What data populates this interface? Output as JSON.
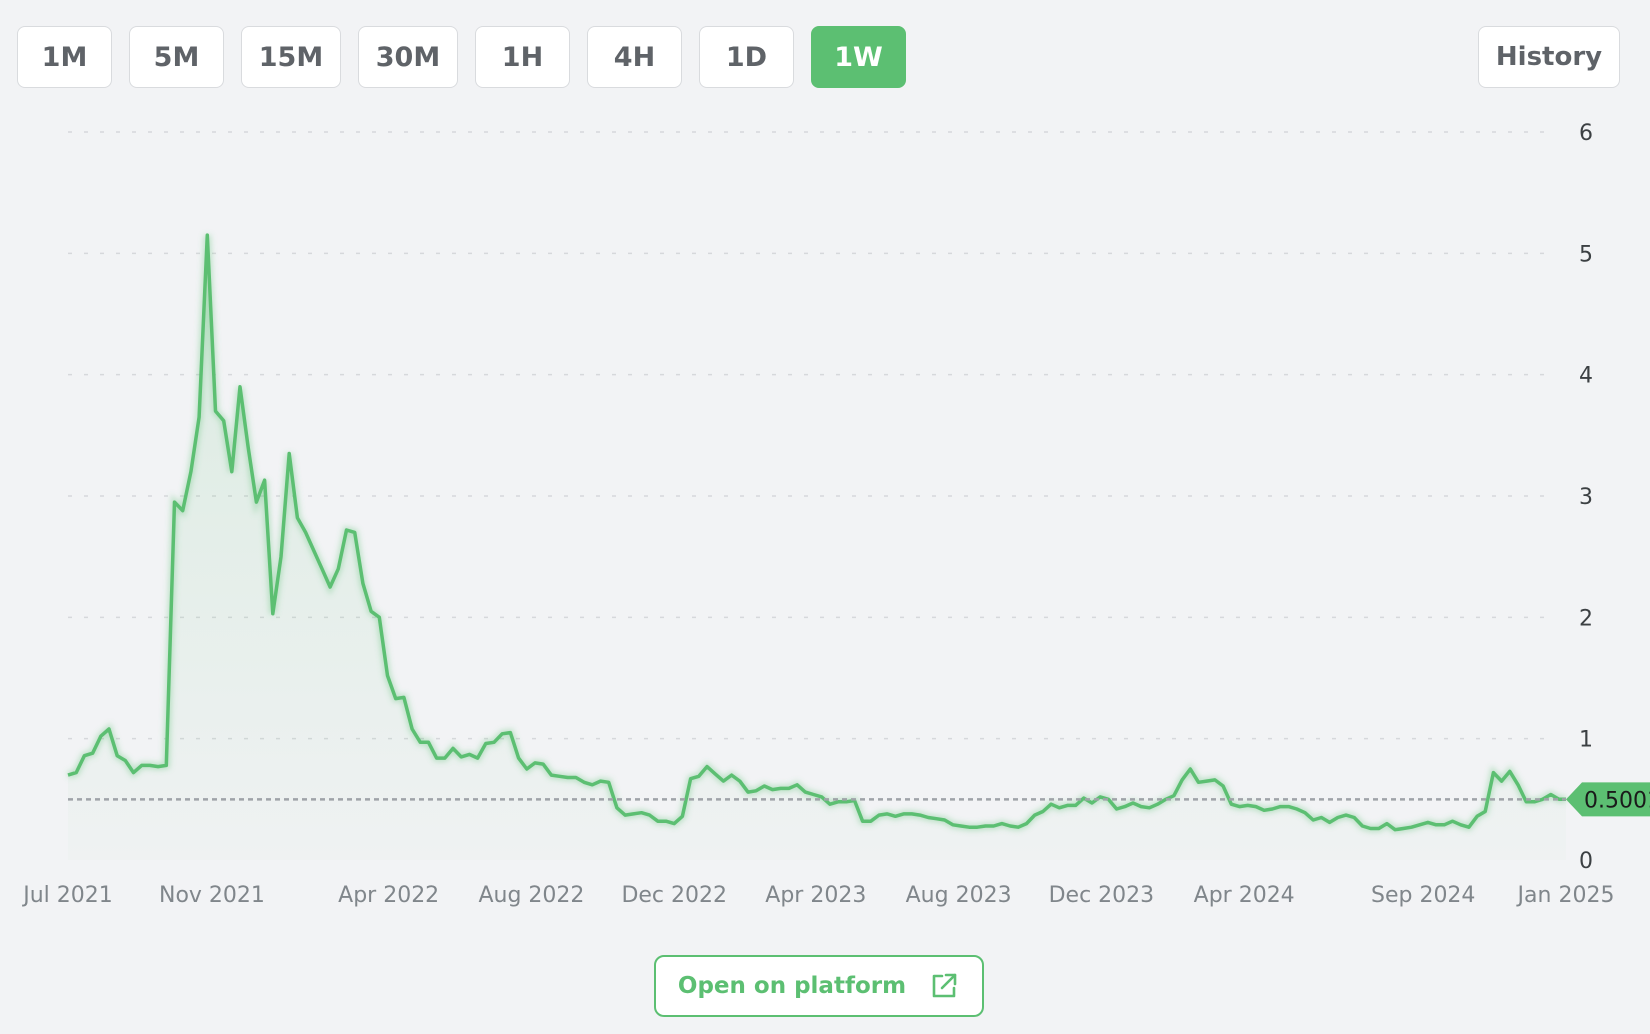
{
  "timeframes": {
    "items": [
      {
        "label": "1M",
        "active": false
      },
      {
        "label": "5M",
        "active": false
      },
      {
        "label": "15M",
        "active": false
      },
      {
        "label": "30M",
        "active": false
      },
      {
        "label": "1H",
        "active": false
      },
      {
        "label": "4H",
        "active": false
      },
      {
        "label": "1D",
        "active": false
      },
      {
        "label": "1W",
        "active": true
      }
    ]
  },
  "history_label": "History",
  "open_label": "Open on platform",
  "icons": {
    "open": "external-link-icon"
  },
  "colors": {
    "accent": "#5cbf72",
    "line": "#5cbf72"
  },
  "chart_data": {
    "type": "area",
    "title": "",
    "xlabel": "",
    "ylabel": "",
    "y_ticks": [
      0,
      1,
      2,
      3,
      4,
      5,
      6
    ],
    "ylim": [
      0,
      6
    ],
    "x_ticks": [
      {
        "date": "2021-07-01",
        "label": "Jul 2021"
      },
      {
        "date": "2021-11-01",
        "label": "Nov 2021"
      },
      {
        "date": "2022-04-01",
        "label": "Apr 2022"
      },
      {
        "date": "2022-08-01",
        "label": "Aug 2022"
      },
      {
        "date": "2022-12-01",
        "label": "Dec 2022"
      },
      {
        "date": "2023-04-01",
        "label": "Apr 2023"
      },
      {
        "date": "2023-08-01",
        "label": "Aug 2023"
      },
      {
        "date": "2023-12-01",
        "label": "Dec 2023"
      },
      {
        "date": "2024-04-01",
        "label": "Apr 2024"
      },
      {
        "date": "2024-09-01",
        "label": "Sep 2024"
      },
      {
        "date": "2025-01-01",
        "label": "Jan 2025"
      }
    ],
    "xlim": [
      "2021-07-01",
      "2025-01-01"
    ],
    "grid": true,
    "last_value": 0.5,
    "last_label": "0.5001",
    "series": [
      {
        "points": [
          [
            "2021-07-01",
            0.7
          ],
          [
            "2021-07-08",
            0.72
          ],
          [
            "2021-07-15",
            0.86
          ],
          [
            "2021-07-22",
            0.88
          ],
          [
            "2021-07-29",
            1.02
          ],
          [
            "2021-08-05",
            1.08
          ],
          [
            "2021-08-12",
            0.86
          ],
          [
            "2021-08-19",
            0.82
          ],
          [
            "2021-08-26",
            0.72
          ],
          [
            "2021-09-02",
            0.78
          ],
          [
            "2021-09-09",
            0.78
          ],
          [
            "2021-09-16",
            0.77
          ],
          [
            "2021-09-23",
            0.78
          ],
          [
            "2021-09-30",
            2.95
          ],
          [
            "2021-10-07",
            2.88
          ],
          [
            "2021-10-14",
            3.2
          ],
          [
            "2021-10-21",
            3.65
          ],
          [
            "2021-10-28",
            5.15
          ],
          [
            "2021-11-04",
            3.7
          ],
          [
            "2021-11-11",
            3.62
          ],
          [
            "2021-11-18",
            3.2
          ],
          [
            "2021-11-25",
            3.9
          ],
          [
            "2021-12-02",
            3.4
          ],
          [
            "2021-12-09",
            2.95
          ],
          [
            "2021-12-16",
            3.13
          ],
          [
            "2021-12-23",
            2.03
          ],
          [
            "2021-12-30",
            2.5
          ],
          [
            "2022-01-06",
            3.35
          ],
          [
            "2022-01-13",
            2.82
          ],
          [
            "2022-01-20",
            2.7
          ],
          [
            "2022-01-27",
            2.55
          ],
          [
            "2022-02-03",
            2.4
          ],
          [
            "2022-02-10",
            2.25
          ],
          [
            "2022-02-17",
            2.4
          ],
          [
            "2022-02-24",
            2.72
          ],
          [
            "2022-03-03",
            2.7
          ],
          [
            "2022-03-10",
            2.28
          ],
          [
            "2022-03-17",
            2.05
          ],
          [
            "2022-03-24",
            2.0
          ],
          [
            "2022-03-31",
            1.52
          ],
          [
            "2022-04-07",
            1.33
          ],
          [
            "2022-04-14",
            1.34
          ],
          [
            "2022-04-21",
            1.08
          ],
          [
            "2022-04-28",
            0.97
          ],
          [
            "2022-05-05",
            0.97
          ],
          [
            "2022-05-12",
            0.84
          ],
          [
            "2022-05-19",
            0.84
          ],
          [
            "2022-05-26",
            0.92
          ],
          [
            "2022-06-02",
            0.85
          ],
          [
            "2022-06-09",
            0.87
          ],
          [
            "2022-06-16",
            0.84
          ],
          [
            "2022-06-23",
            0.96
          ],
          [
            "2022-06-30",
            0.97
          ],
          [
            "2022-07-07",
            1.04
          ],
          [
            "2022-07-14",
            1.05
          ],
          [
            "2022-07-21",
            0.84
          ],
          [
            "2022-07-28",
            0.75
          ],
          [
            "2022-08-04",
            0.8
          ],
          [
            "2022-08-11",
            0.79
          ],
          [
            "2022-08-18",
            0.7
          ],
          [
            "2022-08-25",
            0.69
          ],
          [
            "2022-09-01",
            0.68
          ],
          [
            "2022-09-08",
            0.68
          ],
          [
            "2022-09-15",
            0.64
          ],
          [
            "2022-09-22",
            0.62
          ],
          [
            "2022-09-29",
            0.65
          ],
          [
            "2022-10-06",
            0.64
          ],
          [
            "2022-10-13",
            0.43
          ],
          [
            "2022-10-20",
            0.37
          ],
          [
            "2022-10-27",
            0.38
          ],
          [
            "2022-11-03",
            0.39
          ],
          [
            "2022-11-10",
            0.37
          ],
          [
            "2022-11-17",
            0.32
          ],
          [
            "2022-11-24",
            0.32
          ],
          [
            "2022-12-01",
            0.3
          ],
          [
            "2022-12-08",
            0.36
          ],
          [
            "2022-12-15",
            0.67
          ],
          [
            "2022-12-22",
            0.69
          ],
          [
            "2022-12-29",
            0.77
          ],
          [
            "2023-01-05",
            0.71
          ],
          [
            "2023-01-12",
            0.65
          ],
          [
            "2023-01-19",
            0.7
          ],
          [
            "2023-01-26",
            0.65
          ],
          [
            "2023-02-02",
            0.56
          ],
          [
            "2023-02-09",
            0.57
          ],
          [
            "2023-02-16",
            0.61
          ],
          [
            "2023-02-23",
            0.58
          ],
          [
            "2023-03-02",
            0.59
          ],
          [
            "2023-03-09",
            0.59
          ],
          [
            "2023-03-16",
            0.62
          ],
          [
            "2023-03-23",
            0.56
          ],
          [
            "2023-03-30",
            0.54
          ],
          [
            "2023-04-06",
            0.52
          ],
          [
            "2023-04-13",
            0.46
          ],
          [
            "2023-04-20",
            0.48
          ],
          [
            "2023-04-27",
            0.48
          ],
          [
            "2023-05-04",
            0.49
          ],
          [
            "2023-05-11",
            0.32
          ],
          [
            "2023-05-18",
            0.32
          ],
          [
            "2023-05-25",
            0.37
          ],
          [
            "2023-06-01",
            0.38
          ],
          [
            "2023-06-08",
            0.36
          ],
          [
            "2023-06-15",
            0.38
          ],
          [
            "2023-06-22",
            0.38
          ],
          [
            "2023-06-29",
            0.37
          ],
          [
            "2023-07-06",
            0.35
          ],
          [
            "2023-07-13",
            0.34
          ],
          [
            "2023-07-20",
            0.33
          ],
          [
            "2023-07-27",
            0.29
          ],
          [
            "2023-08-03",
            0.28
          ],
          [
            "2023-08-10",
            0.27
          ],
          [
            "2023-08-17",
            0.27
          ],
          [
            "2023-08-24",
            0.28
          ],
          [
            "2023-08-31",
            0.28
          ],
          [
            "2023-09-07",
            0.3
          ],
          [
            "2023-09-14",
            0.28
          ],
          [
            "2023-09-21",
            0.27
          ],
          [
            "2023-09-28",
            0.3
          ],
          [
            "2023-10-05",
            0.37
          ],
          [
            "2023-10-12",
            0.4
          ],
          [
            "2023-10-19",
            0.46
          ],
          [
            "2023-10-26",
            0.43
          ],
          [
            "2023-11-02",
            0.45
          ],
          [
            "2023-11-09",
            0.45
          ],
          [
            "2023-11-16",
            0.51
          ],
          [
            "2023-11-23",
            0.47
          ],
          [
            "2023-11-30",
            0.52
          ],
          [
            "2023-12-07",
            0.5
          ],
          [
            "2023-12-14",
            0.42
          ],
          [
            "2023-12-21",
            0.44
          ],
          [
            "2023-12-28",
            0.47
          ],
          [
            "2024-01-04",
            0.44
          ],
          [
            "2024-01-11",
            0.43
          ],
          [
            "2024-01-18",
            0.46
          ],
          [
            "2024-01-25",
            0.5
          ],
          [
            "2024-02-01",
            0.53
          ],
          [
            "2024-02-08",
            0.66
          ],
          [
            "2024-02-15",
            0.75
          ],
          [
            "2024-02-22",
            0.64
          ],
          [
            "2024-02-29",
            0.65
          ],
          [
            "2024-03-07",
            0.66
          ],
          [
            "2024-03-14",
            0.61
          ],
          [
            "2024-03-21",
            0.46
          ],
          [
            "2024-03-28",
            0.44
          ],
          [
            "2024-04-04",
            0.45
          ],
          [
            "2024-04-11",
            0.44
          ],
          [
            "2024-04-18",
            0.41
          ],
          [
            "2024-04-25",
            0.42
          ],
          [
            "2024-05-02",
            0.44
          ],
          [
            "2024-05-09",
            0.44
          ],
          [
            "2024-05-16",
            0.42
          ],
          [
            "2024-05-23",
            0.39
          ],
          [
            "2024-05-30",
            0.33
          ],
          [
            "2024-06-06",
            0.35
          ],
          [
            "2024-06-13",
            0.31
          ],
          [
            "2024-06-20",
            0.35
          ],
          [
            "2024-06-27",
            0.37
          ],
          [
            "2024-07-04",
            0.35
          ],
          [
            "2024-07-11",
            0.28
          ],
          [
            "2024-07-18",
            0.26
          ],
          [
            "2024-07-25",
            0.26
          ],
          [
            "2024-08-01",
            0.3
          ],
          [
            "2024-08-08",
            0.25
          ],
          [
            "2024-08-15",
            0.26
          ],
          [
            "2024-08-22",
            0.27
          ],
          [
            "2024-08-29",
            0.29
          ],
          [
            "2024-09-05",
            0.31
          ],
          [
            "2024-09-12",
            0.29
          ],
          [
            "2024-09-19",
            0.29
          ],
          [
            "2024-09-26",
            0.32
          ],
          [
            "2024-10-03",
            0.29
          ],
          [
            "2024-10-10",
            0.27
          ],
          [
            "2024-10-17",
            0.36
          ],
          [
            "2024-10-24",
            0.4
          ],
          [
            "2024-10-31",
            0.72
          ],
          [
            "2024-11-07",
            0.65
          ],
          [
            "2024-11-14",
            0.73
          ],
          [
            "2024-11-21",
            0.62
          ],
          [
            "2024-11-28",
            0.48
          ],
          [
            "2024-12-05",
            0.48
          ],
          [
            "2024-12-12",
            0.5
          ],
          [
            "2024-12-19",
            0.54
          ],
          [
            "2024-12-26",
            0.5
          ],
          [
            "2025-01-01",
            0.5
          ]
        ]
      }
    ]
  }
}
